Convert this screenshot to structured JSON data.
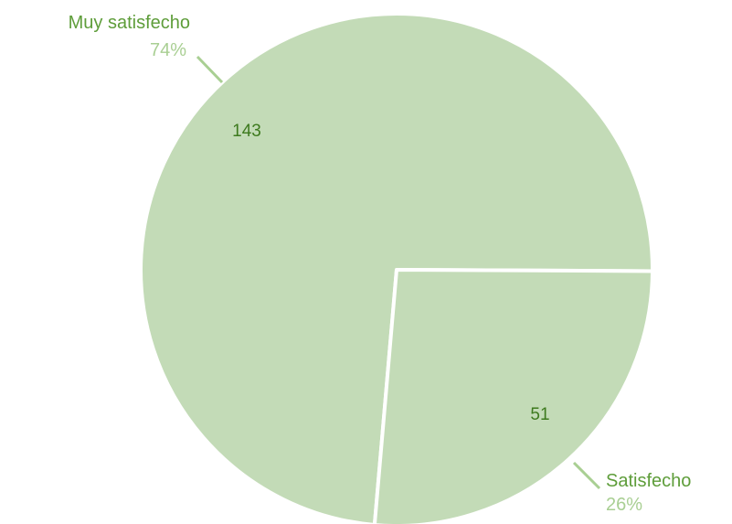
{
  "chart_data": {
    "type": "pie",
    "slices": [
      {
        "label": "Muy satisfecho",
        "value": 143,
        "percent": "74%"
      },
      {
        "label": "Satisfecho",
        "value": 51,
        "percent": "26%"
      }
    ],
    "colors": {
      "slice_fill": "#c3dbb7",
      "slice_border": "#ffffff",
      "category_text": "#5e9d3a",
      "percent_text": "#a9cf93",
      "value_text": "#3d7a1e",
      "leader_line": "#a9cf93"
    }
  }
}
